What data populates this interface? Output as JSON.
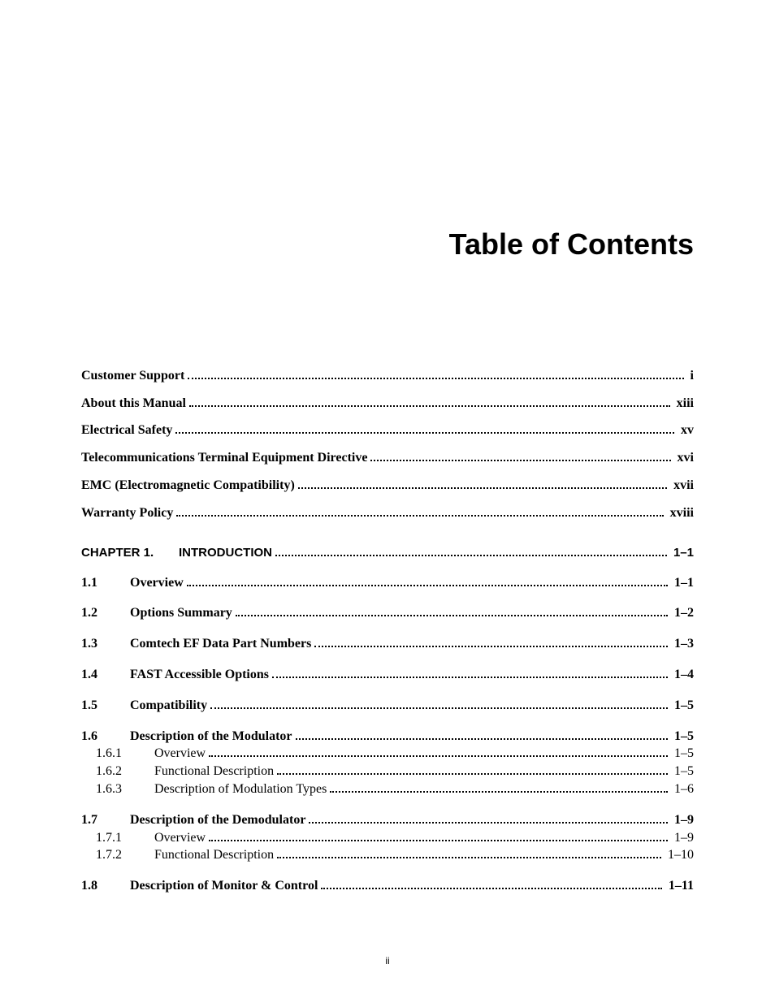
{
  "title": "Table of Contents",
  "page_number": "ii",
  "entries": [
    {
      "num": "",
      "label": "Customer Support",
      "page": "i",
      "bold": true,
      "font": "ftimes",
      "gap": "",
      "indent": ""
    },
    {
      "num": "",
      "label": "About this Manual",
      "page": "xiii",
      "bold": true,
      "font": "ftimes",
      "gap": "section-gap",
      "indent": ""
    },
    {
      "num": "",
      "label": "Electrical Safety",
      "page": "xv",
      "bold": true,
      "font": "ftimes",
      "gap": "section-gap",
      "indent": ""
    },
    {
      "num": "",
      "label": "Telecommunications Terminal Equipment Directive",
      "page": "xvi",
      "bold": true,
      "font": "ftimes",
      "gap": "section-gap",
      "indent": ""
    },
    {
      "num": "",
      "label": "EMC (Electromagnetic Compatibility)",
      "page": "xvii",
      "bold": true,
      "font": "ftimes",
      "gap": "section-gap",
      "indent": ""
    },
    {
      "num": "",
      "label": "Warranty Policy",
      "page": "xviii",
      "bold": true,
      "font": "ftimes",
      "gap": "section-gap",
      "indent": ""
    },
    {
      "num": "CHAPTER 1.",
      "label": "INTRODUCTION",
      "page": "1–1",
      "bold": true,
      "font": "farial",
      "gap": "chapter-gap",
      "indent": ""
    },
    {
      "num": "1.1",
      "label": "Overview",
      "page": "1–1",
      "bold": true,
      "font": "ftimes",
      "gap": "sub-gap",
      "indent": ""
    },
    {
      "num": "1.2",
      "label": "Options Summary",
      "page": "1–2",
      "bold": true,
      "font": "ftimes",
      "gap": "sub-gap",
      "indent": ""
    },
    {
      "num": "1.3",
      "label": "Comtech EF Data Part Numbers",
      "page": "1–3",
      "bold": true,
      "font": "ftimes",
      "gap": "sub-gap",
      "indent": ""
    },
    {
      "num": "1.4",
      "label": "FAST Accessible Options",
      "page": "1–4",
      "bold": true,
      "font": "ftimes",
      "gap": "sub-gap",
      "indent": ""
    },
    {
      "num": "1.5",
      "label": "Compatibility",
      "page": "1–5",
      "bold": true,
      "font": "ftimes",
      "gap": "sub-gap",
      "indent": ""
    },
    {
      "num": "1.6",
      "label": "Description of the Modulator",
      "page": "1–5",
      "bold": true,
      "font": "ftimes",
      "gap": "sub-gap",
      "indent": ""
    },
    {
      "num": "1.6.1",
      "label": "Overview",
      "page": "1–5",
      "bold": false,
      "font": "ftimes",
      "gap": "noline-gap",
      "indent": "indent-1"
    },
    {
      "num": "1.6.2",
      "label": "Functional Description",
      "page": "1–5",
      "bold": false,
      "font": "ftimes",
      "gap": "noline-gap",
      "indent": "indent-1"
    },
    {
      "num": "1.6.3",
      "label": "Description of Modulation Types",
      "page": "1–6",
      "bold": false,
      "font": "ftimes",
      "gap": "noline-gap",
      "indent": "indent-1"
    },
    {
      "num": "1.7",
      "label": "Description of the Demodulator",
      "page": "1–9",
      "bold": true,
      "font": "ftimes",
      "gap": "sub-gap",
      "indent": ""
    },
    {
      "num": "1.7.1",
      "label": "Overview",
      "page": "1–9",
      "bold": false,
      "font": "ftimes",
      "gap": "noline-gap",
      "indent": "indent-1"
    },
    {
      "num": "1.7.2",
      "label": "Functional Description",
      "page": "1–10",
      "bold": false,
      "font": "ftimes",
      "gap": "noline-gap",
      "indent": "indent-1"
    },
    {
      "num": "1.8",
      "label": "Description of Monitor & Control",
      "page": "1–11",
      "bold": true,
      "font": "ftimes",
      "gap": "sub-gap",
      "indent": ""
    }
  ]
}
